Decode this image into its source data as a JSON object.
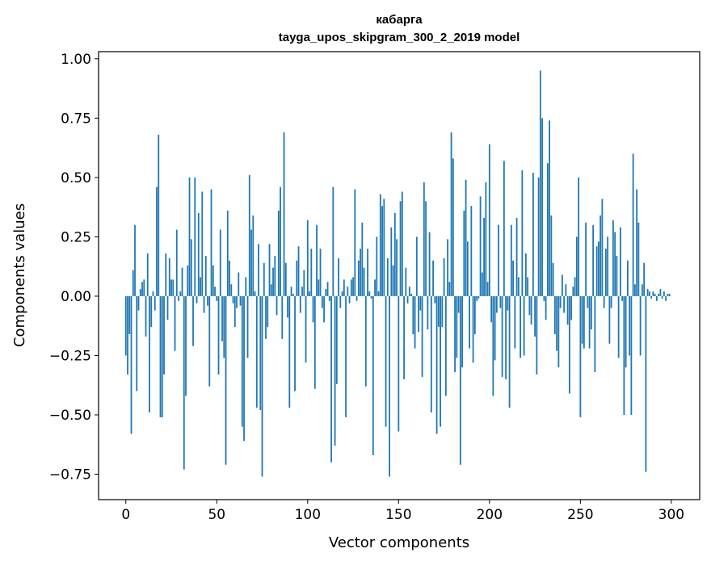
{
  "chart_data": {
    "type": "bar",
    "title": "кабарга",
    "subtitle": "tayga_upos_skipgram_300_2_2019 model",
    "xlabel": "Vector components",
    "ylabel": "Components values",
    "xlim": [
      -15,
      315.6
    ],
    "ylim": [
      -0.857,
      1.03
    ],
    "xticks": [
      0,
      50,
      100,
      150,
      200,
      250,
      300
    ],
    "yticks": [
      -0.75,
      -0.5,
      -0.25,
      0.0,
      0.25,
      0.5,
      0.75,
      1.0
    ],
    "ytick_labels": [
      "−0.75",
      "−0.50",
      "−0.25",
      "0.00",
      "0.25",
      "0.50",
      "0.75",
      "1.00"
    ],
    "bar_color": "#1f77b4",
    "grid": false,
    "values": [
      -0.25,
      -0.33,
      -0.16,
      -0.58,
      0.11,
      0.3,
      -0.4,
      -0.06,
      0.03,
      0.06,
      0.07,
      -0.17,
      0.18,
      -0.49,
      -0.13,
      0.02,
      -0.06,
      0.46,
      0.68,
      -0.51,
      -0.51,
      -0.33,
      0.18,
      -0.1,
      0.16,
      0.07,
      0.07,
      -0.23,
      0.28,
      -0.02,
      0.02,
      0.12,
      -0.73,
      -0.42,
      0.13,
      0.5,
      0.24,
      -0.21,
      0.5,
      -0.03,
      0.35,
      0.08,
      0.44,
      -0.07,
      0.17,
      -0.04,
      -0.38,
      0.45,
      0.13,
      0.04,
      -0.02,
      -0.33,
      0.28,
      -0.19,
      -0.26,
      -0.71,
      0.36,
      0.15,
      0.05,
      -0.03,
      -0.13,
      -0.05,
      0.1,
      -0.04,
      -0.55,
      -0.61,
      0.08,
      -0.26,
      0.51,
      0.28,
      0.34,
      0.02,
      -0.47,
      0.22,
      -0.48,
      -0.76,
      0.14,
      -0.18,
      -0.13,
      0.22,
      0.05,
      0.12,
      0.17,
      -0.08,
      0.36,
      0.46,
      -0.18,
      0.69,
      0.14,
      -0.09,
      -0.47,
      0.04,
      0.01,
      -0.4,
      0.15,
      0.21,
      -0.07,
      0.04,
      0.11,
      -0.28,
      0.32,
      0.02,
      0.2,
      -0.11,
      -0.39,
      0.3,
      0.07,
      0.2,
      -0.05,
      -0.11,
      0.03,
      0.06,
      -0.02,
      -0.7,
      0.46,
      -0.63,
      -0.37,
      0.16,
      -0.05,
      0.02,
      0.07,
      -0.51,
      0.04,
      -0.03,
      0.07,
      0.08,
      0.45,
      -0.02,
      0.15,
      0.2,
      0.31,
      0.12,
      -0.38,
      0.2,
      0.02,
      -0.01,
      -0.67,
      0.07,
      0.25,
      0.02,
      0.43,
      0.38,
      0.41,
      -0.55,
      0.16,
      -0.76,
      0.29,
      0.13,
      0.35,
      0.24,
      -0.57,
      0.4,
      0.44,
      -0.35,
      0.12,
      -0.03,
      0.04,
      0.01,
      -0.16,
      -0.22,
      0.25,
      -0.15,
      -0.06,
      -0.34,
      0.48,
      0.4,
      -0.14,
      0.27,
      -0.49,
      0.15,
      -0.03,
      -0.58,
      -0.13,
      -0.55,
      -0.13,
      0.16,
      -0.42,
      0.24,
      0.06,
      0.69,
      0.58,
      -0.32,
      -0.26,
      -0.07,
      -0.71,
      -0.3,
      0.36,
      0.49,
      0.23,
      -0.22,
      0.38,
      -0.28,
      -0.16,
      -0.02,
      -0.01,
      0.42,
      0.1,
      0.33,
      0.48,
      0.06,
      0.64,
      -0.11,
      -0.42,
      -0.27,
      -0.07,
      0.3,
      -0.05,
      -0.34,
      0.57,
      -0.35,
      -0.06,
      -0.47,
      0.3,
      0.15,
      -0.22,
      0.33,
      0.08,
      -0.26,
      0.53,
      -0.25,
      0.18,
      0.08,
      -0.08,
      -0.12,
      0.52,
      -0.17,
      -0.33,
      0.5,
      0.95,
      0.75,
      -0.02,
      -0.1,
      0.56,
      0.74,
      0.34,
      0.14,
      -0.16,
      -0.23,
      -0.3,
      -0.05,
      0.09,
      -0.07,
      0.05,
      -0.12,
      -0.41,
      -0.1,
      0.04,
      0.08,
      0.25,
      0.5,
      -0.51,
      -0.2,
      -0.22,
      0.31,
      -0.05,
      -0.22,
      -0.14,
      0.3,
      -0.32,
      0.21,
      0.23,
      0.34,
      0.41,
      -0.05,
      0.2,
      0.25,
      -0.2,
      -0.05,
      0.32,
      0.27,
      0.17,
      -0.26,
      0.29,
      -0.02,
      -0.5,
      -0.3,
      0.15,
      -0.25,
      -0.5,
      0.6,
      0.05,
      0.45,
      0.31,
      -0.25,
      0.05,
      0.14,
      -0.74,
      0.03,
      0.02,
      -0.01,
      0.02,
      0.01,
      -0.02,
      0.01,
      0.03,
      -0.01,
      0.02,
      -0.02,
      0.01,
      0.01
    ]
  }
}
